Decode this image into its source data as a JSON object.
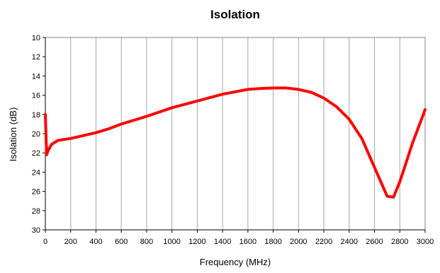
{
  "chart_data": {
    "type": "line",
    "title": "Isolation",
    "xlabel": "Frequency (MHz)",
    "ylabel": "Isolation (dB)",
    "xlim": [
      0,
      3000
    ],
    "ylim": [
      10,
      30
    ],
    "y_inverted": true,
    "grid": "vertical",
    "legend": "none",
    "x_ticks": [
      "0",
      "200",
      "400",
      "600",
      "800",
      "1000",
      "1200",
      "1400",
      "1600",
      "1800",
      "2000",
      "2200",
      "2400",
      "2600",
      "2800",
      "3000"
    ],
    "y_ticks": [
      "10",
      "12",
      "14",
      "16",
      "18",
      "20",
      "22",
      "24",
      "26",
      "28",
      "30"
    ],
    "series": [
      {
        "color": "#ff0000",
        "x": [
          0,
          10,
          20,
          50,
          100,
          200,
          300,
          400,
          500,
          600,
          800,
          1000,
          1200,
          1400,
          1600,
          1700,
          1800,
          1900,
          2000,
          2100,
          2200,
          2300,
          2400,
          2500,
          2600,
          2700,
          2750,
          2800,
          2900,
          3000
        ],
        "y": [
          18.0,
          22.2,
          21.8,
          21.1,
          20.7,
          20.5,
          20.2,
          19.9,
          19.5,
          19.0,
          18.2,
          17.3,
          16.6,
          15.9,
          15.4,
          15.3,
          15.25,
          15.25,
          15.4,
          15.7,
          16.3,
          17.2,
          18.5,
          20.5,
          23.5,
          26.5,
          26.6,
          25.0,
          21.0,
          17.5
        ]
      }
    ]
  }
}
